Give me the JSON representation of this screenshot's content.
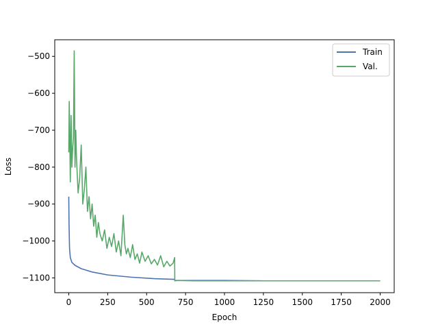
{
  "chart_data": {
    "type": "line",
    "title": "",
    "xlabel": "Epoch",
    "ylabel": "Loss",
    "xlim": [
      -90,
      2090
    ],
    "ylim": [
      -1140,
      -455
    ],
    "xticks": [
      0,
      250,
      500,
      750,
      1000,
      1250,
      1500,
      1750,
      2000
    ],
    "yticks": [
      -1100,
      -1000,
      -900,
      -800,
      -700,
      -600,
      -500
    ],
    "xtick_labels": [
      "0",
      "250",
      "500",
      "750",
      "1000",
      "1250",
      "1500",
      "1750",
      "2000"
    ],
    "ytick_labels": [
      "−1100",
      "−1000",
      "−900",
      "−800",
      "−700",
      "−600",
      "−500"
    ],
    "grid": false,
    "legend_position": "top-right",
    "series": [
      {
        "name": "Train",
        "color": "#4c72b0",
        "x": [
          0,
          2,
          5,
          10,
          20,
          40,
          80,
          150,
          250,
          400,
          550,
          680,
          681,
          800,
          1000,
          1250,
          1500,
          1750,
          2000
        ],
        "y": [
          -880,
          -960,
          -1020,
          -1045,
          -1058,
          -1066,
          -1075,
          -1084,
          -1092,
          -1098,
          -1102,
          -1104,
          -1107,
          -1107,
          -1107,
          -1108,
          -1108,
          -1108,
          -1108
        ]
      },
      {
        "name": "Val.",
        "color": "#55a868",
        "x": [
          0,
          3,
          6,
          10,
          15,
          20,
          25,
          30,
          35,
          40,
          45,
          50,
          60,
          70,
          80,
          90,
          100,
          110,
          120,
          130,
          140,
          150,
          160,
          170,
          180,
          190,
          200,
          215,
          230,
          245,
          260,
          275,
          290,
          305,
          320,
          335,
          350,
          360,
          370,
          380,
          395,
          410,
          425,
          440,
          455,
          470,
          490,
          510,
          530,
          550,
          570,
          590,
          610,
          630,
          650,
          670,
          680,
          681,
          700,
          800,
          900,
          1000,
          1200,
          1400,
          1600,
          1800,
          2000
        ],
        "y": [
          -760,
          -622,
          -700,
          -840,
          -660,
          -800,
          -750,
          -720,
          -485,
          -800,
          -700,
          -780,
          -870,
          -830,
          -740,
          -900,
          -860,
          -800,
          -920,
          -880,
          -940,
          -900,
          -960,
          -930,
          -990,
          -950,
          -980,
          -1000,
          -970,
          -1020,
          -990,
          -1015,
          -980,
          -1030,
          -1000,
          -1040,
          -930,
          -1010,
          -1035,
          -1020,
          -1045,
          -1010,
          -1050,
          -1035,
          -1060,
          -1030,
          -1055,
          -1040,
          -1062,
          -1050,
          -1065,
          -1040,
          -1070,
          -1055,
          -1068,
          -1060,
          -1045,
          -1108,
          -1107,
          -1108,
          -1108,
          -1108,
          -1108,
          -1108,
          -1108,
          -1108,
          -1108
        ]
      }
    ]
  }
}
